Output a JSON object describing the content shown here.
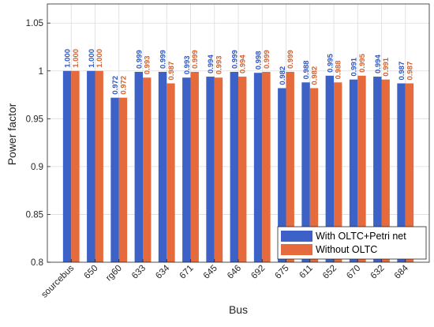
{
  "chart_data": {
    "type": "bar",
    "title": "",
    "xlabel": "Bus",
    "ylabel": "Power factor",
    "ylim": [
      0.8,
      1.07
    ],
    "yticks": [
      "0.8",
      "0.85",
      "0.9",
      "0.95",
      "1",
      "1.05"
    ],
    "grid": true,
    "legend_position": "bottom-right",
    "categories": [
      "sourcebus",
      "650",
      "rg60",
      "633",
      "634",
      "671",
      "645",
      "646",
      "692",
      "675",
      "611",
      "652",
      "670",
      "632",
      "684"
    ],
    "series": [
      {
        "name": "With OLTC+Petri net",
        "color": "#3c62c7",
        "label_color": "#2d55c4",
        "values": [
          1.0,
          1.0,
          0.972,
          0.999,
          0.999,
          0.993,
          0.994,
          0.999,
          0.998,
          0.982,
          0.988,
          0.995,
          0.991,
          0.994,
          0.987
        ],
        "labels": [
          "1.000",
          "1.000",
          "0.972",
          "0.999",
          "0.999",
          "0.993",
          "0.994",
          "0.999",
          "0.998",
          "0.982",
          "0.988",
          "0.995",
          "0.991",
          "0.994",
          "0.987"
        ]
      },
      {
        "name": "Without OLTC",
        "color": "#e66b3c",
        "label_color": "#d0612f",
        "values": [
          1.0,
          1.0,
          0.972,
          0.993,
          0.987,
          0.999,
          0.993,
          0.994,
          0.999,
          0.999,
          0.982,
          0.988,
          0.995,
          0.991,
          0.987
        ],
        "labels": [
          "1.000",
          "1.000",
          "0.972",
          "0.993",
          "0.987",
          "0.999",
          "0.993",
          "0.994",
          "0.999",
          "0.999",
          "0.982",
          "0.988",
          "0.995",
          "0.991",
          "0.987"
        ]
      }
    ]
  }
}
